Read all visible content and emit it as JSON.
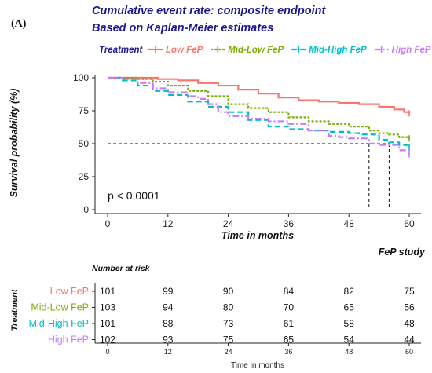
{
  "panel_label": "(A)",
  "study_label": "FeP study",
  "chart_data": {
    "type": "line",
    "title": "Cumulative event rate: composite endpoint",
    "subtitle": "Based on Kaplan-Meier estimates",
    "xlabel": "Time in months",
    "ylabel": "Survival probability (%)",
    "xlim": [
      0,
      60
    ],
    "ylim": [
      0,
      100
    ],
    "xticks": [
      0,
      12,
      24,
      36,
      48,
      60
    ],
    "yticks": [
      0,
      25,
      50,
      75,
      100
    ],
    "legend_title": "Treatment",
    "legend_position": "top",
    "annotation": "p < 0.0001",
    "median_reference": {
      "y": 50,
      "x_medians": [
        52,
        56
      ]
    },
    "series": [
      {
        "name": "Low FeP",
        "color": "#f8766d",
        "dash": "solid",
        "x": [
          0,
          5,
          10,
          14,
          18,
          22,
          26,
          30,
          34,
          38,
          42,
          46,
          50,
          54,
          57,
          59,
          60
        ],
        "y": [
          100,
          100,
          99,
          98,
          96,
          94,
          91,
          88,
          85,
          83,
          82,
          81,
          80,
          78,
          76,
          74,
          73
        ]
      },
      {
        "name": "Mid-Low FeP",
        "color": "#7cae00",
        "dash": "dotted",
        "x": [
          0,
          3,
          6,
          9,
          12,
          16,
          20,
          24,
          28,
          32,
          36,
          40,
          44,
          48,
          50,
          52,
          54,
          56,
          58,
          60
        ],
        "y": [
          100,
          100,
          99,
          97,
          94,
          90,
          86,
          80,
          77,
          74,
          70,
          67,
          65,
          63,
          63,
          60,
          58,
          57,
          55,
          54
        ]
      },
      {
        "name": "Mid-High FeP",
        "color": "#00bfc4",
        "dash": "dashed",
        "x": [
          0,
          3,
          6,
          9,
          12,
          16,
          20,
          24,
          28,
          32,
          36,
          40,
          44,
          48,
          50,
          54,
          56,
          58,
          60
        ],
        "y": [
          100,
          98,
          94,
          90,
          87,
          82,
          78,
          74,
          68,
          63,
          61,
          60,
          59,
          58,
          57,
          53,
          51,
          49,
          47
        ]
      },
      {
        "name": "High FeP",
        "color": "#c77cff",
        "dash": "dashdot",
        "x": [
          0,
          3,
          6,
          9,
          12,
          16,
          18,
          20,
          22,
          24,
          28,
          32,
          36,
          40,
          44,
          46,
          48,
          52,
          54,
          56,
          58,
          60
        ],
        "y": [
          100,
          99,
          96,
          92,
          89,
          86,
          84,
          80,
          74,
          71,
          69,
          67,
          65,
          60,
          56,
          55,
          54,
          50,
          49,
          49,
          45,
          42
        ]
      }
    ]
  },
  "risk_table": {
    "title": "Number at risk",
    "ylabel": "Treatment",
    "xlabel": "Time in months",
    "times": [
      0,
      12,
      24,
      36,
      48,
      60
    ],
    "rows": [
      {
        "name": "Low FeP",
        "color": "#f8766d",
        "values": [
          101,
          99,
          90,
          84,
          82,
          75
        ]
      },
      {
        "name": "Mid-Low FeP",
        "color": "#7cae00",
        "values": [
          103,
          94,
          80,
          70,
          65,
          56
        ]
      },
      {
        "name": "Mid-High FeP",
        "color": "#00bfc4",
        "values": [
          101,
          88,
          73,
          61,
          58,
          48
        ]
      },
      {
        "name": "High FeP",
        "color": "#c77cff",
        "values": [
          102,
          93,
          75,
          65,
          54,
          44
        ]
      }
    ]
  }
}
